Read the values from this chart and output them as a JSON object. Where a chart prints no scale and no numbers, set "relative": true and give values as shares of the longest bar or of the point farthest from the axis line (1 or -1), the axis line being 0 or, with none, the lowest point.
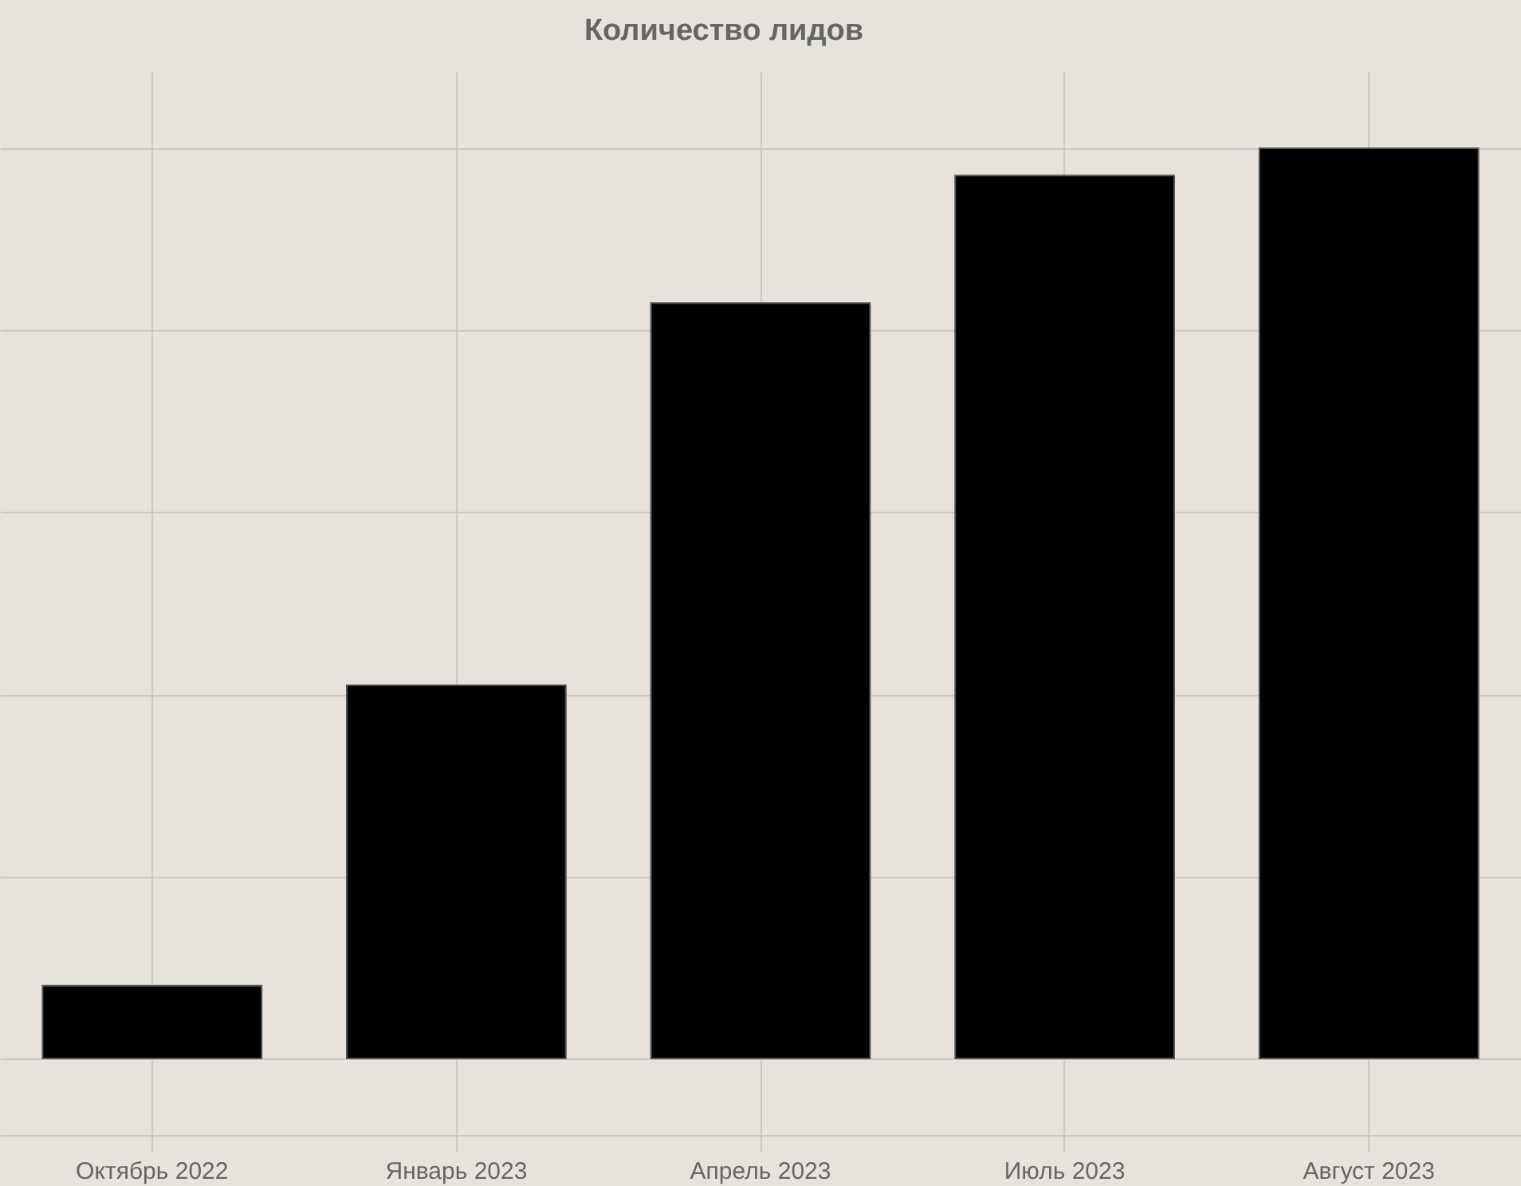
{
  "chart_data": {
    "type": "bar",
    "title": "Количество лидов",
    "categories": [
      "Октябрь 2022",
      "Январь 2023",
      "Апрель 2023",
      "Июль 2023",
      "Август 2023"
    ],
    "values": [
      0.08,
      0.41,
      0.83,
      0.97,
      1
    ],
    "color": "#000000",
    "relative": true,
    "grid": true
  }
}
